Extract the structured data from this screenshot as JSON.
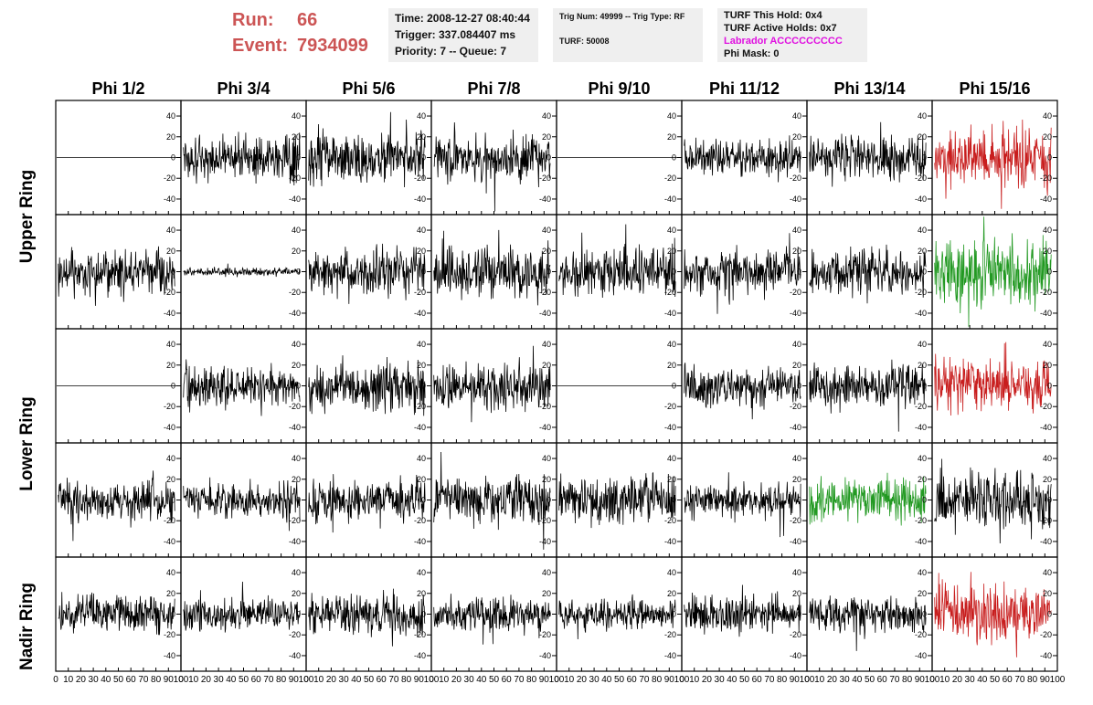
{
  "header": {
    "run_label": "Run:",
    "run_value": "66",
    "event_label": "Event:",
    "event_value": "7934099"
  },
  "info_time": {
    "time": "Time: 2008-12-27 08:40:44",
    "trigger": "Trigger: 337.084407 ms",
    "priority": "Priority: 7 -- Queue: 7"
  },
  "info_trig": {
    "trig": "Trig Num: 49999 -- Trig Type: RF",
    "turf": "TURF: 50008"
  },
  "info_turf": {
    "hold": "TURF This Hold: 0x4",
    "active": "TURF Active Holds: 0x7",
    "labrador": "Labrador ACCCCCCCCC",
    "phimask": "Phi Mask: 0"
  },
  "colors": {
    "header_red": "#cc5555",
    "labrador_magenta": "#e010e0",
    "trace_black": "#000000",
    "trace_red": "#c81e1e",
    "trace_green": "#229922",
    "box_gray": "#efefef"
  },
  "phi_headers": [
    "Phi 1/2",
    "Phi 3/4",
    "Phi 5/6",
    "Phi 7/8",
    "Phi 9/10",
    "Phi 11/12",
    "Phi 13/14",
    "Phi 15/16"
  ],
  "ring_labels": {
    "upper": "Upper Ring",
    "lower": "Lower Ring",
    "nadir": "Nadir Ring"
  },
  "chart_data": {
    "type": "line",
    "layout": "grid of 5 rows x 8 columns of waveform panels",
    "rows": 5,
    "cols": 8,
    "xlim": [
      0,
      100
    ],
    "ylim": [
      -55,
      55
    ],
    "x_ticks": [
      0,
      10,
      20,
      30,
      40,
      50,
      60,
      70,
      80,
      90,
      100
    ],
    "x_tick_labels": [
      "0",
      "10",
      "20",
      "30",
      "40",
      "50",
      "60",
      "70",
      "80",
      "90",
      "100"
    ],
    "y_ticks": [
      -40,
      -20,
      0,
      20,
      40
    ],
    "y_tick_labels": [
      "-40",
      "-20",
      "0",
      "20",
      "40"
    ],
    "traces": [
      {
        "row": 0,
        "col": 0,
        "style": "flat",
        "amp": 0,
        "color": "black"
      },
      {
        "row": 0,
        "col": 1,
        "style": "noise",
        "amp": 18,
        "color": "black"
      },
      {
        "row": 0,
        "col": 2,
        "style": "noise",
        "amp": 20,
        "color": "black"
      },
      {
        "row": 0,
        "col": 3,
        "style": "noise",
        "amp": 18,
        "color": "black"
      },
      {
        "row": 0,
        "col": 4,
        "style": "flat",
        "amp": 0,
        "color": "black"
      },
      {
        "row": 0,
        "col": 5,
        "style": "noise",
        "amp": 14,
        "color": "black"
      },
      {
        "row": 0,
        "col": 6,
        "style": "noise",
        "amp": 18,
        "color": "black"
      },
      {
        "row": 0,
        "col": 7,
        "style": "noise",
        "amp": 25,
        "color": "red"
      },
      {
        "row": 1,
        "col": 0,
        "style": "noise",
        "amp": 18,
        "color": "black"
      },
      {
        "row": 1,
        "col": 1,
        "style": "noise",
        "amp": 3,
        "color": "black"
      },
      {
        "row": 1,
        "col": 2,
        "style": "noise",
        "amp": 20,
        "color": "black"
      },
      {
        "row": 1,
        "col": 3,
        "style": "noise",
        "amp": 20,
        "color": "black"
      },
      {
        "row": 1,
        "col": 4,
        "style": "noise",
        "amp": 20,
        "color": "black"
      },
      {
        "row": 1,
        "col": 5,
        "style": "noise",
        "amp": 17,
        "color": "black"
      },
      {
        "row": 1,
        "col": 6,
        "style": "noise",
        "amp": 18,
        "color": "black"
      },
      {
        "row": 1,
        "col": 7,
        "style": "noise",
        "amp": 27,
        "color": "green"
      },
      {
        "row": 2,
        "col": 0,
        "style": "flat",
        "amp": 0,
        "color": "black"
      },
      {
        "row": 2,
        "col": 1,
        "style": "noise",
        "amp": 16,
        "color": "black"
      },
      {
        "row": 2,
        "col": 2,
        "style": "noise",
        "amp": 20,
        "color": "black"
      },
      {
        "row": 2,
        "col": 3,
        "style": "noise",
        "amp": 18,
        "color": "black"
      },
      {
        "row": 2,
        "col": 4,
        "style": "flat",
        "amp": 0,
        "color": "black"
      },
      {
        "row": 2,
        "col": 5,
        "style": "noise",
        "amp": 16,
        "color": "black"
      },
      {
        "row": 2,
        "col": 6,
        "style": "noise",
        "amp": 18,
        "color": "black"
      },
      {
        "row": 2,
        "col": 7,
        "style": "noise",
        "amp": 22,
        "color": "red"
      },
      {
        "row": 3,
        "col": 0,
        "style": "noise",
        "amp": 15,
        "color": "black"
      },
      {
        "row": 3,
        "col": 1,
        "style": "noise",
        "amp": 14,
        "color": "black"
      },
      {
        "row": 3,
        "col": 2,
        "style": "noise",
        "amp": 17,
        "color": "black"
      },
      {
        "row": 3,
        "col": 3,
        "style": "noise",
        "amp": 18,
        "color": "black"
      },
      {
        "row": 3,
        "col": 4,
        "style": "noise",
        "amp": 18,
        "color": "black"
      },
      {
        "row": 3,
        "col": 5,
        "style": "noise",
        "amp": 14,
        "color": "black"
      },
      {
        "row": 3,
        "col": 6,
        "style": "noise",
        "amp": 18,
        "color": "green"
      },
      {
        "row": 3,
        "col": 7,
        "style": "noise",
        "amp": 22,
        "color": "black"
      },
      {
        "row": 4,
        "col": 0,
        "style": "noise",
        "amp": 14,
        "color": "black"
      },
      {
        "row": 4,
        "col": 1,
        "style": "noise",
        "amp": 13,
        "color": "black"
      },
      {
        "row": 4,
        "col": 2,
        "style": "noise",
        "amp": 16,
        "color": "black"
      },
      {
        "row": 4,
        "col": 3,
        "style": "noise",
        "amp": 14,
        "color": "black"
      },
      {
        "row": 4,
        "col": 4,
        "style": "noise",
        "amp": 13,
        "color": "black"
      },
      {
        "row": 4,
        "col": 5,
        "style": "noise",
        "amp": 15,
        "color": "black"
      },
      {
        "row": 4,
        "col": 6,
        "style": "noise",
        "amp": 14,
        "color": "black"
      },
      {
        "row": 4,
        "col": 7,
        "style": "noise",
        "amp": 22,
        "color": "red"
      }
    ]
  }
}
